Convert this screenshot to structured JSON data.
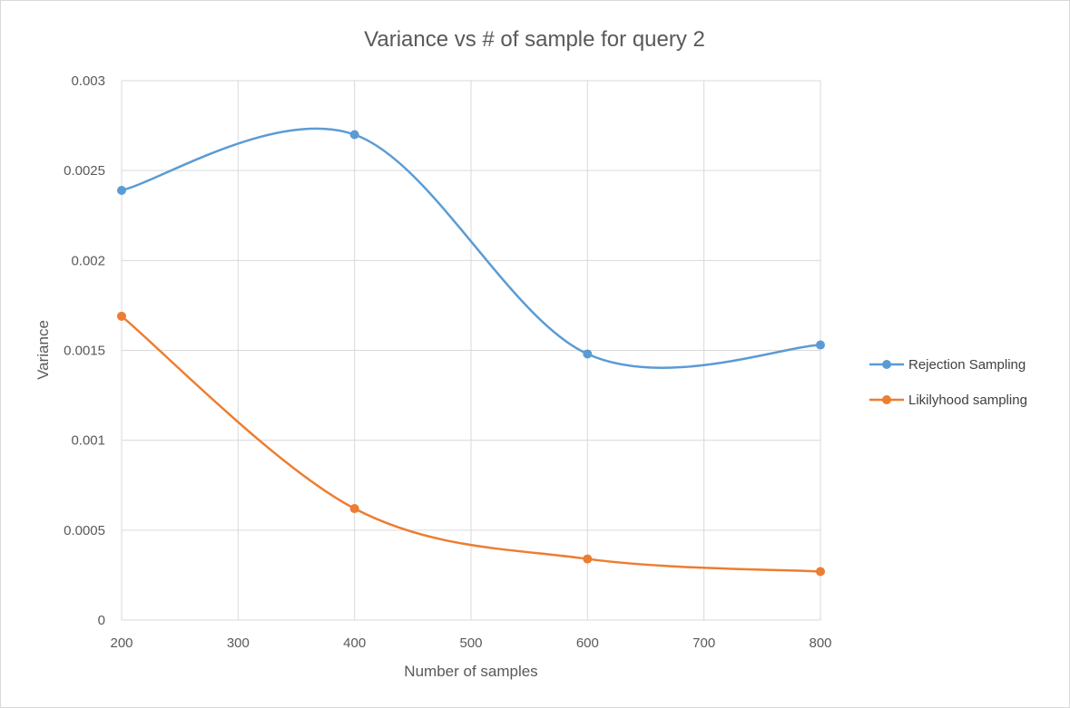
{
  "chart_data": {
    "type": "line",
    "title": "Variance vs # of sample for query 2",
    "xlabel": "Number of samples",
    "ylabel": "Variance",
    "x": [
      200,
      400,
      600,
      800
    ],
    "xlim": [
      200,
      800
    ],
    "ylim": [
      0,
      0.003
    ],
    "x_ticks": [
      "200",
      "300",
      "400",
      "500",
      "600",
      "700",
      "800"
    ],
    "y_ticks": [
      "0",
      "0.0005",
      "0.001",
      "0.0015",
      "0.002",
      "0.0025",
      "0.003"
    ],
    "grid": true,
    "smooth": true,
    "legend_position": "right",
    "series": [
      {
        "name": "Rejection Sampling",
        "color": "#5B9BD5",
        "values": [
          0.00239,
          0.0027,
          0.00148,
          0.00153
        ]
      },
      {
        "name": "Likilyhood sampling",
        "color": "#ED7D31",
        "values": [
          0.00169,
          0.00062,
          0.00034,
          0.00027
        ]
      }
    ]
  }
}
